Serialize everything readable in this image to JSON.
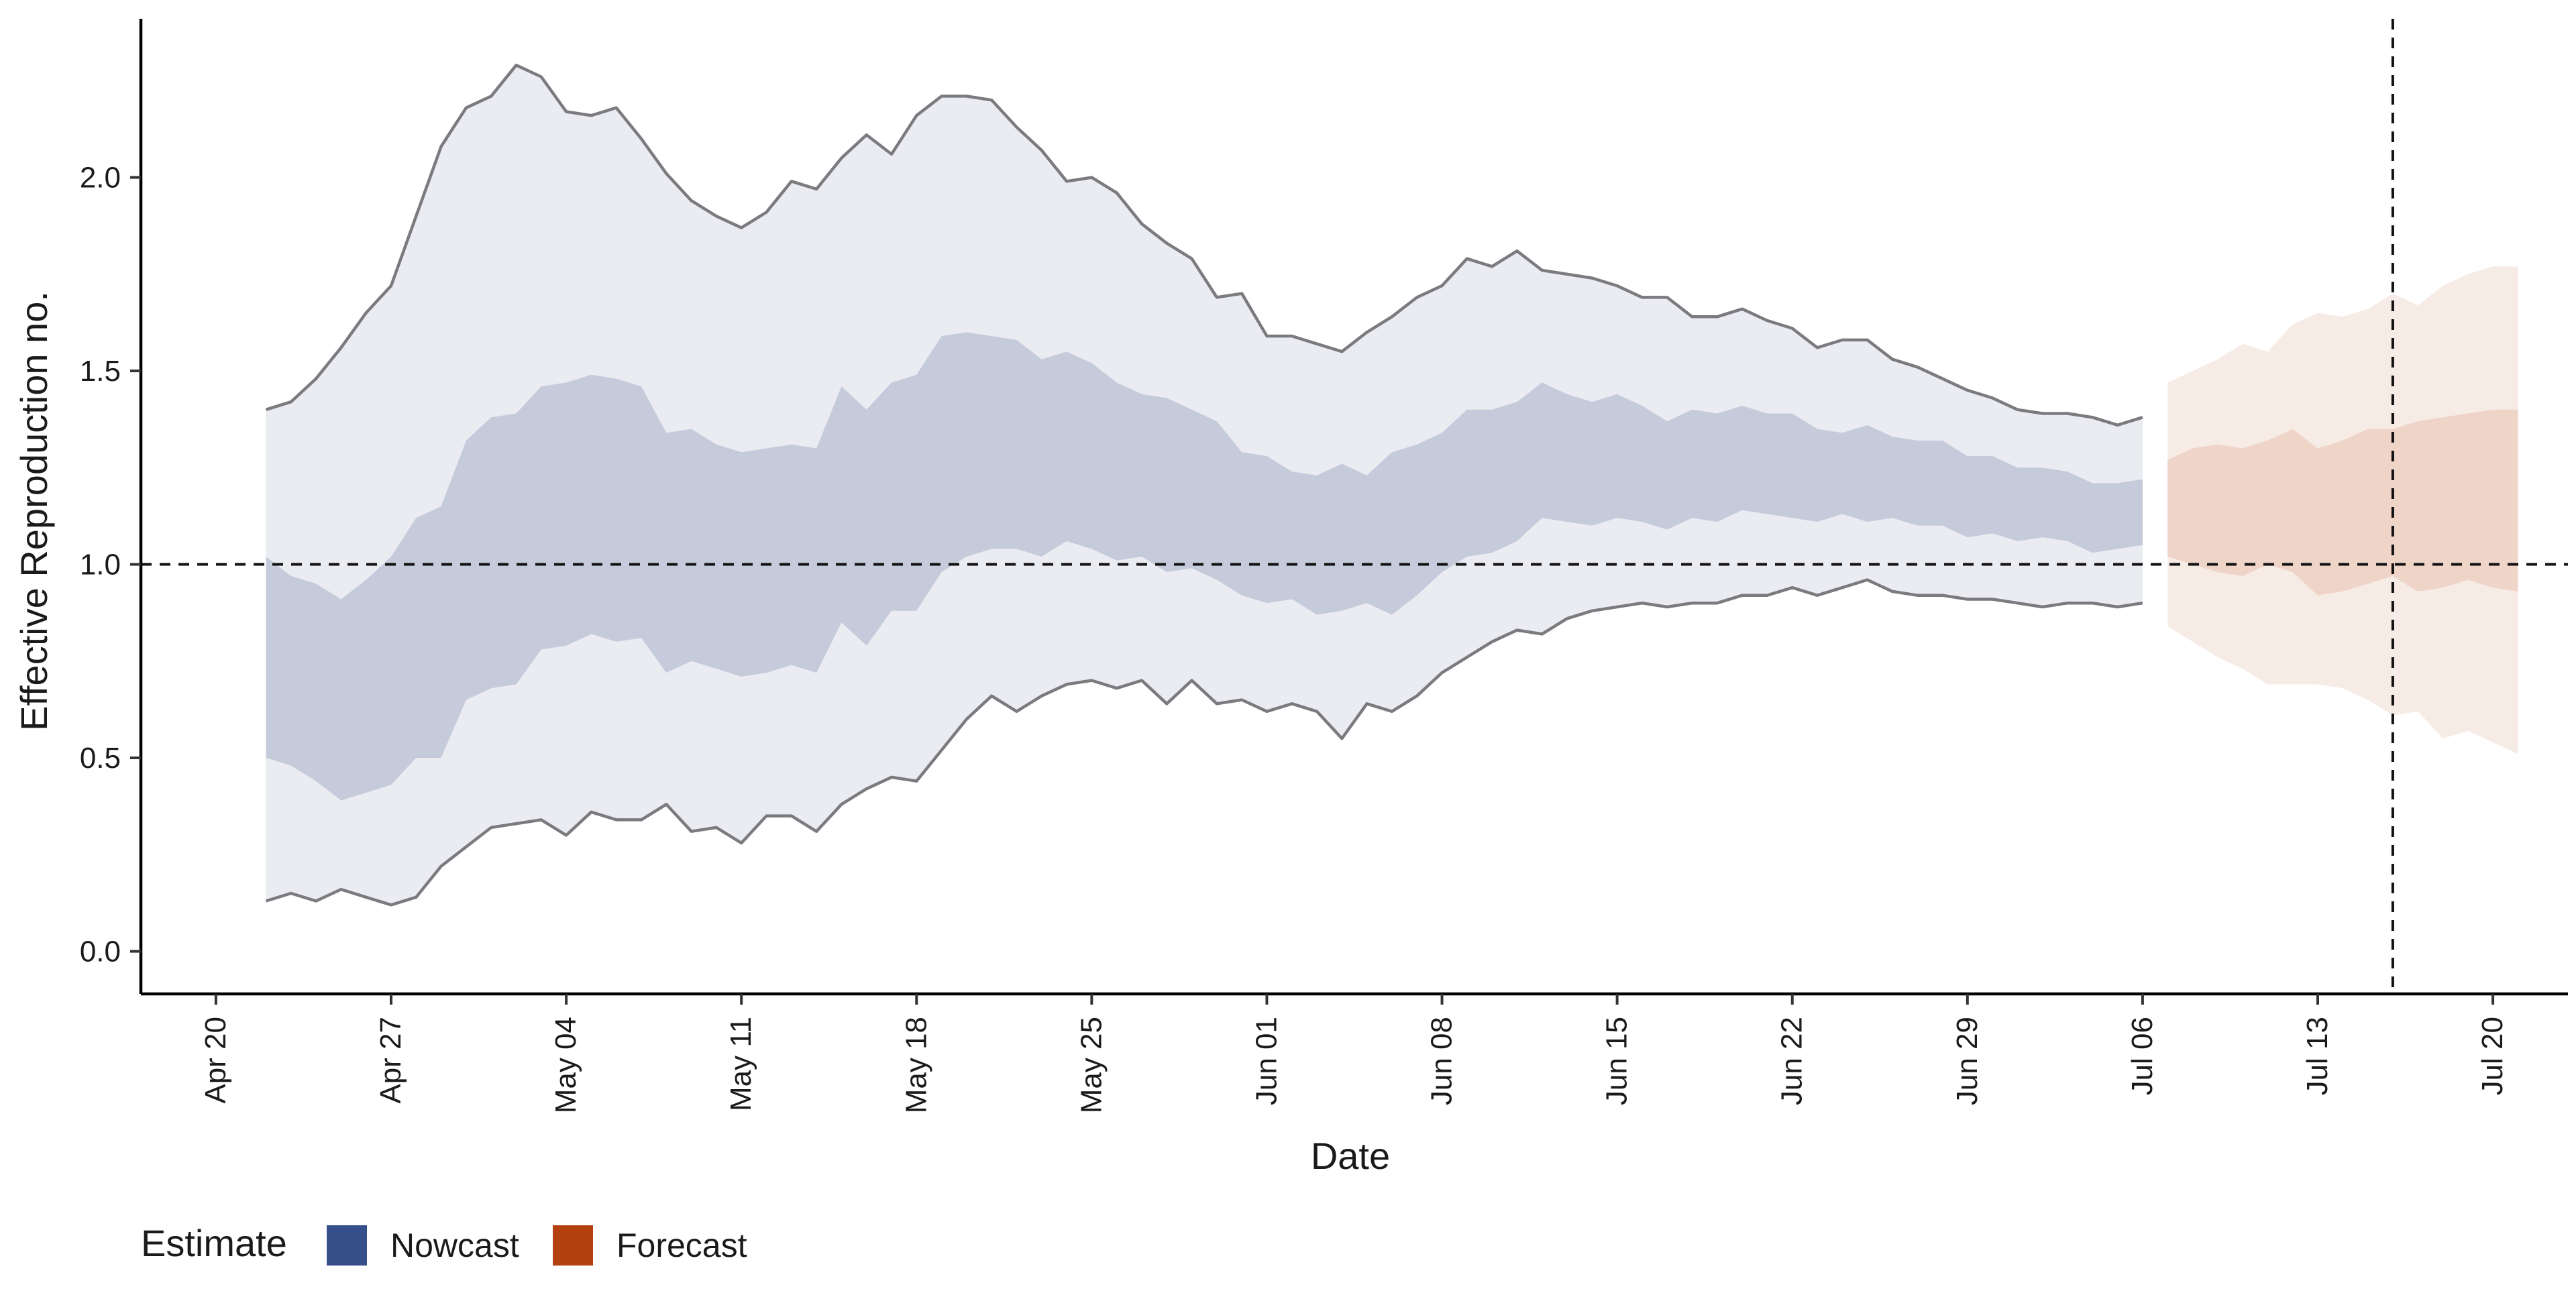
{
  "chart_data": {
    "type": "area",
    "xlabel": "Date",
    "ylabel": "Effective Reproduction no.",
    "ylim": [
      -0.11,
      2.41
    ],
    "xlim": [
      "2020-04-17",
      "2020-07-23"
    ],
    "y_ticks": [
      "0.0",
      "0.5",
      "1.0",
      "1.5",
      "2.0"
    ],
    "x_ticks": [
      {
        "date": "2020-04-20",
        "label": "Apr 20"
      },
      {
        "date": "2020-04-27",
        "label": "Apr 27"
      },
      {
        "date": "2020-05-04",
        "label": "May 04"
      },
      {
        "date": "2020-05-11",
        "label": "May 11"
      },
      {
        "date": "2020-05-18",
        "label": "May 18"
      },
      {
        "date": "2020-05-25",
        "label": "May 25"
      },
      {
        "date": "2020-06-01",
        "label": "Jun 01"
      },
      {
        "date": "2020-06-08",
        "label": "Jun 08"
      },
      {
        "date": "2020-06-15",
        "label": "Jun 15"
      },
      {
        "date": "2020-06-22",
        "label": "Jun 22"
      },
      {
        "date": "2020-06-29",
        "label": "Jun 29"
      },
      {
        "date": "2020-07-06",
        "label": "Jul 06"
      },
      {
        "date": "2020-07-13",
        "label": "Jul 13"
      },
      {
        "date": "2020-07-20",
        "label": "Jul 20"
      }
    ],
    "reference_hline": 1.0,
    "reference_vline": "2020-07-16",
    "grid": false,
    "legend": {
      "title": "Estimate",
      "position": "bottom-left",
      "entries": [
        {
          "label": "Nowcast",
          "color": "#354f8a"
        },
        {
          "label": "Forecast",
          "color": "#b4400f"
        }
      ]
    },
    "series": [
      {
        "name": "Nowcast",
        "color": "#354f8a",
        "outer_color": "#eaecf1",
        "inner_color": "#c6cbdb",
        "line_color": "#7b7b7f",
        "start_date": "2020-04-22",
        "lower_90": [
          0.13,
          0.15,
          0.13,
          0.16,
          0.14,
          0.12,
          0.14,
          0.22,
          0.27,
          0.32,
          0.33,
          0.34,
          0.3,
          0.36,
          0.34,
          0.34,
          0.38,
          0.31,
          0.32,
          0.28,
          0.35,
          0.35,
          0.31,
          0.38,
          0.42,
          0.45,
          0.44,
          0.52,
          0.6,
          0.66,
          0.62,
          0.66,
          0.69,
          0.7,
          0.68,
          0.7,
          0.64,
          0.7,
          0.64,
          0.65,
          0.62,
          0.64,
          0.62,
          0.55,
          0.64,
          0.62,
          0.66,
          0.72,
          0.76,
          0.8,
          0.83,
          0.82,
          0.86,
          0.88,
          0.89,
          0.9,
          0.89,
          0.9,
          0.9,
          0.92,
          0.92,
          0.94,
          0.92,
          0.94,
          0.96,
          0.93,
          0.92,
          0.92,
          0.91,
          0.91,
          0.9,
          0.89,
          0.9,
          0.9,
          0.89,
          0.9
        ],
        "upper_90": [
          1.4,
          1.42,
          1.48,
          1.56,
          1.65,
          1.72,
          1.9,
          2.08,
          2.18,
          2.21,
          2.29,
          2.26,
          2.17,
          2.16,
          2.18,
          2.1,
          2.01,
          1.94,
          1.9,
          1.87,
          1.91,
          1.99,
          1.97,
          2.05,
          2.11,
          2.06,
          2.16,
          2.21,
          2.21,
          2.2,
          2.13,
          2.07,
          1.99,
          2.0,
          1.96,
          1.88,
          1.83,
          1.79,
          1.69,
          1.7,
          1.59,
          1.59,
          1.57,
          1.55,
          1.6,
          1.64,
          1.69,
          1.72,
          1.79,
          1.77,
          1.81,
          1.76,
          1.75,
          1.74,
          1.72,
          1.69,
          1.69,
          1.64,
          1.64,
          1.66,
          1.63,
          1.61,
          1.56,
          1.58,
          1.58,
          1.53,
          1.51,
          1.48,
          1.45,
          1.43,
          1.4,
          1.39,
          1.39,
          1.38,
          1.36,
          1.38
        ],
        "lower_50": [
          0.5,
          0.48,
          0.44,
          0.39,
          0.41,
          0.43,
          0.5,
          0.5,
          0.65,
          0.68,
          0.69,
          0.78,
          0.79,
          0.82,
          0.8,
          0.81,
          0.72,
          0.75,
          0.73,
          0.71,
          0.72,
          0.74,
          0.72,
          0.85,
          0.79,
          0.88,
          0.88,
          0.98,
          1.02,
          1.04,
          1.04,
          1.02,
          1.06,
          1.04,
          1.01,
          1.02,
          0.98,
          0.99,
          0.96,
          0.92,
          0.9,
          0.91,
          0.87,
          0.88,
          0.9,
          0.87,
          0.92,
          0.98,
          1.02,
          1.03,
          1.06,
          1.12,
          1.11,
          1.1,
          1.12,
          1.11,
          1.09,
          1.12,
          1.11,
          1.14,
          1.13,
          1.12,
          1.11,
          1.13,
          1.11,
          1.12,
          1.1,
          1.1,
          1.07,
          1.08,
          1.06,
          1.07,
          1.06,
          1.03,
          1.04,
          1.05
        ],
        "upper_50": [
          1.02,
          0.97,
          0.95,
          0.91,
          0.96,
          1.02,
          1.12,
          1.15,
          1.32,
          1.38,
          1.39,
          1.46,
          1.47,
          1.49,
          1.48,
          1.46,
          1.34,
          1.35,
          1.31,
          1.29,
          1.3,
          1.31,
          1.3,
          1.46,
          1.4,
          1.47,
          1.49,
          1.59,
          1.6,
          1.59,
          1.58,
          1.53,
          1.55,
          1.52,
          1.47,
          1.44,
          1.43,
          1.4,
          1.37,
          1.29,
          1.28,
          1.24,
          1.23,
          1.26,
          1.23,
          1.29,
          1.31,
          1.34,
          1.4,
          1.4,
          1.42,
          1.47,
          1.44,
          1.42,
          1.44,
          1.41,
          1.37,
          1.4,
          1.39,
          1.41,
          1.39,
          1.39,
          1.35,
          1.34,
          1.36,
          1.33,
          1.32,
          1.32,
          1.28,
          1.28,
          1.25,
          1.25,
          1.24,
          1.21,
          1.21,
          1.22
        ]
      },
      {
        "name": "Forecast",
        "color": "#b4400f",
        "outer_color": "#f7ebe6",
        "inner_color": "#efd4c8",
        "start_date": "2020-07-07",
        "lower_90": [
          0.84,
          0.8,
          0.76,
          0.73,
          0.69,
          0.69,
          0.69,
          0.68,
          0.65,
          0.61,
          0.62,
          0.55,
          0.57,
          0.54,
          0.51
        ],
        "upper_90": [
          1.47,
          1.5,
          1.53,
          1.57,
          1.55,
          1.62,
          1.65,
          1.64,
          1.66,
          1.7,
          1.67,
          1.72,
          1.75,
          1.77,
          1.77
        ],
        "lower_50": [
          1.02,
          1.0,
          0.98,
          0.97,
          1.0,
          0.98,
          0.92,
          0.93,
          0.95,
          0.97,
          0.93,
          0.94,
          0.96,
          0.94,
          0.93
        ],
        "upper_50": [
          1.27,
          1.3,
          1.31,
          1.3,
          1.32,
          1.35,
          1.3,
          1.32,
          1.35,
          1.35,
          1.37,
          1.38,
          1.39,
          1.4,
          1.4
        ]
      }
    ]
  }
}
